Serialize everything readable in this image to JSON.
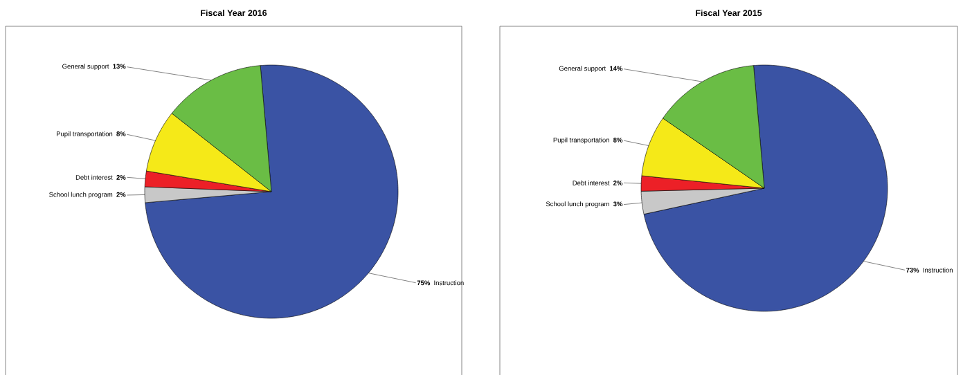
{
  "chart_data": [
    {
      "type": "pie",
      "title": "Fiscal Year 2016",
      "categories": [
        "Instruction",
        "School lunch program",
        "Debt interest",
        "Pupil transportation",
        "General support"
      ],
      "values": [
        75,
        2,
        2,
        8,
        13
      ],
      "colors": [
        "#3a53a4",
        "#c8c8c8",
        "#ec2027",
        "#f5e918",
        "#6abd45"
      ],
      "value_labels": [
        "75%",
        "2%",
        "2%",
        "8%",
        "13%"
      ]
    },
    {
      "type": "pie",
      "title": "Fiscal Year 2015",
      "categories": [
        "Instruction",
        "School lunch program",
        "Debt interest",
        "Pupil transportation",
        "General support"
      ],
      "values": [
        73,
        3,
        2,
        8,
        14
      ],
      "colors": [
        "#3a53a4",
        "#c8c8c8",
        "#ec2027",
        "#f5e918",
        "#6abd45"
      ],
      "value_labels": [
        "73%",
        "3%",
        "2%",
        "8%",
        "14%"
      ]
    }
  ]
}
